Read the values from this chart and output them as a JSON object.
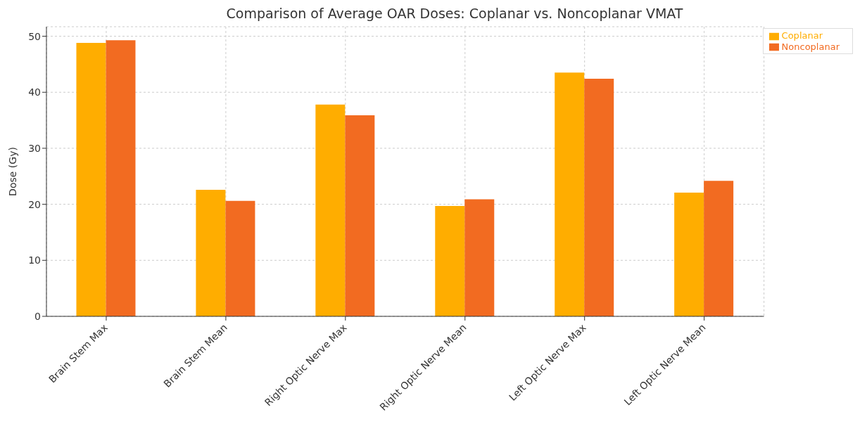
{
  "chart_data": {
    "type": "bar",
    "title": "Comparison of Average OAR Doses: Coplanar vs. Noncoplanar VMAT",
    "ylabel": "Dose (Gy)",
    "categories": [
      "Brain Stem Max",
      "Brain Stem Mean",
      "Right Optic Nerve Max",
      "Right Optic Nerve Mean",
      "Left Optic Nerve Max",
      "Left Optic Nerve Mean"
    ],
    "series": [
      {
        "name": "Coplanar",
        "color": "#ffad00",
        "values": [
          48.8,
          22.6,
          37.8,
          19.7,
          43.5,
          22.1
        ]
      },
      {
        "name": "Noncoplanar",
        "color": "#f26b21",
        "values": [
          49.3,
          20.6,
          35.9,
          20.9,
          42.4,
          24.2
        ]
      }
    ],
    "ylim": [
      0,
      51.7
    ],
    "yticks": [
      0,
      10,
      20,
      30,
      40,
      50
    ],
    "grid": true,
    "legend": "top right"
  }
}
